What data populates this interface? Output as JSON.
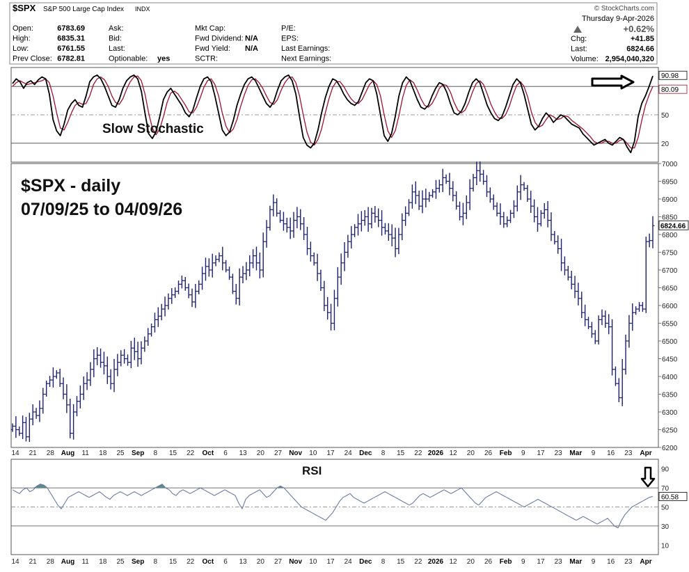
{
  "header": {
    "symbol": "$SPX",
    "name": "S&P 500 Large Cap Index",
    "exchange": "INDX",
    "watermark": "© StockCharts.com",
    "date": "Thursday  9-Apr-2026",
    "pct_change": "+0.62%",
    "stats_col1": [
      {
        "label": "Open:",
        "value": "6783.69"
      },
      {
        "label": "High:",
        "value": "6835.31"
      },
      {
        "label": "Low:",
        "value": "6761.55"
      },
      {
        "label": "Prev Close:",
        "value": "6782.81"
      }
    ],
    "stats_col2": [
      {
        "label": "Ask:",
        "value": ""
      },
      {
        "label": "Bid:",
        "value": ""
      },
      {
        "label": "Last:",
        "value": ""
      },
      {
        "label": "Optionable:",
        "value": "yes"
      }
    ],
    "stats_col3": [
      {
        "label": "Mkt Cap:",
        "value": ""
      },
      {
        "label": "Fwd Dividend:",
        "value": "N/A"
      },
      {
        "label": "Fwd Yield:",
        "value": "N/A"
      },
      {
        "label": "SCTR:",
        "value": ""
      }
    ],
    "stats_col4": [
      {
        "label": "P/E:",
        "value": ""
      },
      {
        "label": "EPS:",
        "value": ""
      },
      {
        "label": "Last Earnings:",
        "value": ""
      },
      {
        "label": "Next Earnings:",
        "value": ""
      }
    ],
    "stats_col5": [
      {
        "label": "Chg:",
        "value": "+41.85"
      },
      {
        "label": "Last:",
        "value": "6824.66"
      },
      {
        "label": "Volume:",
        "value": "2,954,040,320"
      }
    ]
  },
  "chart_data": [
    {
      "panel": "stochastic",
      "type": "line",
      "title": "Slow Stochastic",
      "ylim": [
        0,
        100
      ],
      "yticks": [
        20,
        50
      ],
      "reference_lines": [
        20,
        80
      ],
      "last_values": {
        "k": "90.98",
        "d": "80.09"
      },
      "colors": {
        "k": "#000000",
        "d": "#a01030"
      },
      "annotation": "arrow pointing right at latest reading",
      "series": [
        {
          "values": [
            83,
            88,
            85,
            78,
            84,
            86,
            82,
            87,
            90,
            88,
            72,
            45,
            33,
            28,
            40,
            55,
            62,
            66,
            60,
            58,
            70,
            85,
            90,
            92,
            88,
            80,
            70,
            60,
            58,
            66,
            78,
            86,
            90,
            92,
            88,
            75,
            52,
            30,
            25,
            32,
            48,
            66,
            74,
            78,
            72,
            66,
            60,
            52,
            48,
            55,
            68,
            80,
            88,
            90,
            85,
            70,
            52,
            34,
            28,
            32,
            44,
            60,
            72,
            82,
            88,
            90,
            86,
            78,
            70,
            62,
            58,
            64,
            76,
            86,
            90,
            92,
            86,
            72,
            48,
            26,
            18,
            15,
            20,
            34,
            52,
            68,
            80,
            88,
            86,
            80,
            72,
            66,
            62,
            60,
            64,
            74,
            84,
            88,
            86,
            72,
            50,
            28,
            22,
            30,
            48,
            70,
            84,
            90,
            86,
            76,
            66,
            58,
            56,
            60,
            70,
            78,
            84,
            82,
            74,
            62,
            52,
            50,
            54,
            62,
            74,
            84,
            88,
            84,
            72,
            60,
            52,
            46,
            44,
            48,
            58,
            70,
            82,
            88,
            84,
            72,
            56,
            40,
            34,
            38,
            46,
            52,
            48,
            42,
            46,
            50,
            48,
            44,
            40,
            38,
            36,
            30,
            26,
            22,
            18,
            20,
            22,
            24,
            20,
            18,
            22,
            26,
            24,
            16,
            10,
            22,
            48,
            62,
            70,
            80,
            91
          ]
        },
        {
          "values": [
            80,
            84,
            86,
            84,
            82,
            83,
            84,
            85,
            86,
            88,
            84,
            70,
            52,
            36,
            34,
            42,
            52,
            60,
            63,
            61,
            62,
            70,
            82,
            88,
            90,
            87,
            80,
            70,
            63,
            61,
            67,
            77,
            85,
            90,
            91,
            86,
            72,
            52,
            36,
            29,
            35,
            48,
            63,
            73,
            75,
            72,
            66,
            60,
            53,
            52,
            58,
            68,
            79,
            86,
            88,
            82,
            70,
            52,
            38,
            31,
            35,
            45,
            59,
            71,
            81,
            87,
            88,
            84,
            78,
            70,
            63,
            61,
            66,
            76,
            84,
            89,
            90,
            84,
            70,
            50,
            32,
            21,
            18,
            24,
            35,
            52,
            67,
            79,
            85,
            85,
            80,
            73,
            67,
            63,
            62,
            66,
            74,
            82,
            86,
            82,
            70,
            50,
            33,
            26,
            33,
            49,
            68,
            81,
            87,
            84,
            76,
            67,
            60,
            58,
            62,
            69,
            78,
            82,
            81,
            74,
            63,
            55,
            52,
            55,
            63,
            74,
            83,
            86,
            82,
            72,
            61,
            53,
            47,
            46,
            50,
            59,
            71,
            81,
            85,
            80,
            69,
            53,
            42,
            37,
            39,
            45,
            50,
            48,
            45,
            46,
            49,
            48,
            44,
            41,
            38,
            35,
            31,
            27,
            22,
            20,
            20,
            22,
            22,
            20,
            20,
            23,
            24,
            20,
            15,
            15,
            26,
            44,
            60,
            71,
            80
          ]
        }
      ]
    },
    {
      "panel": "price",
      "type": "ohlc",
      "title": "$SPX - daily",
      "subtitle": "07/09/25 to 04/09/26",
      "ylim": [
        6200,
        7000
      ],
      "yticks": [
        6200,
        6250,
        6300,
        6350,
        6400,
        6450,
        6500,
        6550,
        6600,
        6650,
        6700,
        6750,
        6800,
        6850,
        6900,
        6950,
        7000
      ],
      "last_price_label": "6824.66",
      "color": "#1a1f6e",
      "closes": [
        6260,
        6250,
        6240,
        6270,
        6230,
        6280,
        6300,
        6290,
        6310,
        6350,
        6380,
        6390,
        6400,
        6410,
        6380,
        6350,
        6320,
        6240,
        6300,
        6330,
        6350,
        6380,
        6390,
        6420,
        6450,
        6460,
        6440,
        6430,
        6400,
        6380,
        6420,
        6440,
        6460,
        6450,
        6440,
        6480,
        6470,
        6450,
        6480,
        6500,
        6520,
        6540,
        6560,
        6570,
        6590,
        6600,
        6620,
        6630,
        6640,
        6660,
        6670,
        6650,
        6630,
        6610,
        6640,
        6660,
        6690,
        6710,
        6700,
        6720,
        6730,
        6740,
        6720,
        6700,
        6680,
        6640,
        6620,
        6680,
        6690,
        6700,
        6720,
        6740,
        6720,
        6700,
        6780,
        6820,
        6870,
        6890,
        6860,
        6840,
        6830,
        6820,
        6810,
        6840,
        6850,
        6830,
        6800,
        6760,
        6740,
        6720,
        6690,
        6650,
        6600,
        6580,
        6550,
        6620,
        6680,
        6720,
        6750,
        6780,
        6800,
        6820,
        6830,
        6840,
        6850,
        6830,
        6860,
        6850,
        6840,
        6820,
        6810,
        6800,
        6790,
        6760,
        6800,
        6840,
        6860,
        6890,
        6920,
        6910,
        6880,
        6900,
        6900,
        6910,
        6920,
        6930,
        6940,
        6960,
        6950,
        6930,
        6910,
        6880,
        6850,
        6860,
        6890,
        6930,
        6960,
        6980,
        6970,
        6950,
        6920,
        6900,
        6880,
        6860,
        6850,
        6830,
        6840,
        6860,
        6880,
        6920,
        6940,
        6930,
        6900,
        6880,
        6850,
        6830,
        6860,
        6870,
        6840,
        6800,
        6780,
        6760,
        6720,
        6700,
        6680,
        6660,
        6640,
        6620,
        6580,
        6560,
        6540,
        6520,
        6500,
        6560,
        6570,
        6550,
        6540,
        6420,
        6380,
        6340,
        6420,
        6500,
        6550,
        6580,
        6590,
        6600,
        6590,
        6780,
        6783,
        6825
      ]
    },
    {
      "panel": "rsi",
      "type": "line",
      "title": "RSI",
      "ylim": [
        0,
        100
      ],
      "yticks": [
        10,
        30,
        50,
        70,
        90
      ],
      "reference_lines": [
        30,
        70
      ],
      "last_value": "60.58",
      "color": "#6a7aa6",
      "annotation": "arrow pointing down at latest reading",
      "values": [
        68,
        66,
        64,
        68,
        70,
        66,
        68,
        72,
        74,
        73,
        70,
        64,
        58,
        52,
        48,
        54,
        60,
        62,
        64,
        66,
        64,
        62,
        60,
        62,
        64,
        66,
        63,
        60,
        58,
        62,
        64,
        66,
        64,
        62,
        64,
        66,
        64,
        62,
        64,
        66,
        68,
        70,
        72,
        74,
        70,
        68,
        64,
        62,
        66,
        68,
        66,
        64,
        66,
        68,
        70,
        68,
        66,
        64,
        62,
        64,
        66,
        68,
        66,
        64,
        62,
        54,
        48,
        58,
        62,
        64,
        66,
        68,
        64,
        60,
        62,
        66,
        70,
        72,
        70,
        66,
        62,
        58,
        54,
        50,
        48,
        46,
        44,
        42,
        40,
        38,
        36,
        40,
        44,
        50,
        56,
        60,
        62,
        64,
        60,
        58,
        56,
        54,
        56,
        58,
        60,
        62,
        64,
        66,
        64,
        62,
        60,
        58,
        56,
        54,
        52,
        54,
        58,
        62,
        64,
        62,
        60,
        62,
        64,
        66,
        68,
        66,
        64,
        66,
        68,
        70,
        66,
        62,
        58,
        54,
        52,
        56,
        60,
        62,
        64,
        66,
        64,
        62,
        60,
        58,
        56,
        54,
        52,
        50,
        52,
        54,
        56,
        58,
        56,
        54,
        52,
        50,
        48,
        46,
        44,
        42,
        40,
        38,
        36,
        38,
        40,
        38,
        36,
        34,
        32,
        34,
        36,
        38,
        34,
        30,
        28,
        36,
        42,
        46,
        50,
        52,
        54,
        56,
        58,
        60,
        61
      ]
    }
  ],
  "x_axis": {
    "ticks": [
      {
        "label": "14",
        "bold": false
      },
      {
        "label": "21",
        "bold": false
      },
      {
        "label": "28",
        "bold": false
      },
      {
        "label": "Aug",
        "bold": true
      },
      {
        "label": "11",
        "bold": false
      },
      {
        "label": "18",
        "bold": false
      },
      {
        "label": "25",
        "bold": false
      },
      {
        "label": "Sep",
        "bold": true
      },
      {
        "label": "8",
        "bold": false
      },
      {
        "label": "15",
        "bold": false
      },
      {
        "label": "22",
        "bold": false
      },
      {
        "label": "Oct",
        "bold": true
      },
      {
        "label": "6",
        "bold": false
      },
      {
        "label": "13",
        "bold": false
      },
      {
        "label": "20",
        "bold": false
      },
      {
        "label": "27",
        "bold": false
      },
      {
        "label": "Nov",
        "bold": true
      },
      {
        "label": "10",
        "bold": false
      },
      {
        "label": "17",
        "bold": false
      },
      {
        "label": "24",
        "bold": false
      },
      {
        "label": "Dec",
        "bold": true
      },
      {
        "label": "8",
        "bold": false
      },
      {
        "label": "15",
        "bold": false
      },
      {
        "label": "22",
        "bold": false
      },
      {
        "label": "2026",
        "bold": true
      },
      {
        "label": "12",
        "bold": false
      },
      {
        "label": "20",
        "bold": false
      },
      {
        "label": "26",
        "bold": false
      },
      {
        "label": "Feb",
        "bold": true
      },
      {
        "label": "9",
        "bold": false
      },
      {
        "label": "17",
        "bold": false
      },
      {
        "label": "23",
        "bold": false
      },
      {
        "label": "Mar",
        "bold": true
      },
      {
        "label": "9",
        "bold": false
      },
      {
        "label": "16",
        "bold": false
      },
      {
        "label": "23",
        "bold": false
      },
      {
        "label": "Apr",
        "bold": true
      }
    ]
  }
}
